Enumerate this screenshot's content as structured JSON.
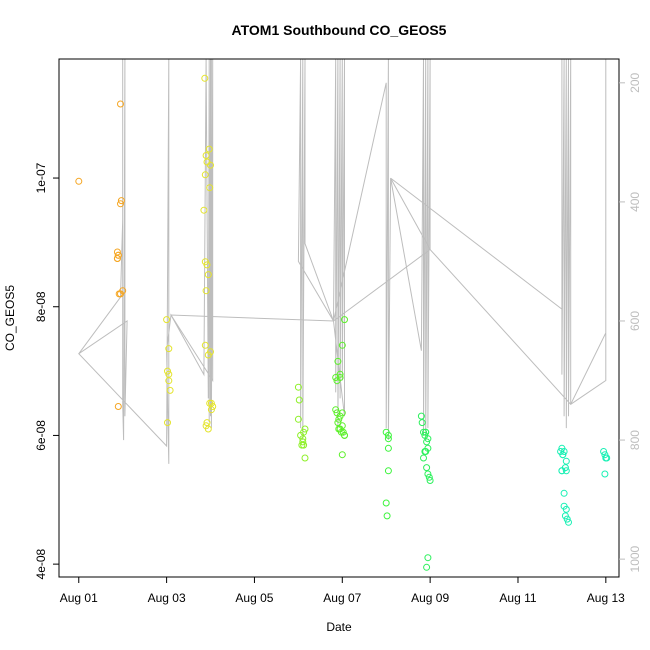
{
  "chart_data": {
    "type": "scatter",
    "title": "ATOM1 Southbound CO_GEOS5",
    "xlabel": "Date",
    "ylabel": "CO_GEOS5",
    "x_ticks": [
      "Aug 01",
      "Aug 03",
      "Aug 05",
      "Aug 07",
      "Aug 09",
      "Aug 11",
      "Aug 13"
    ],
    "x_tick_days": [
      1,
      3,
      5,
      7,
      9,
      11,
      13
    ],
    "xlim_days": [
      0.55,
      13.3
    ],
    "y_ticks": [
      "4e-08",
      "6e-08",
      "8e-08",
      "1e-07"
    ],
    "y_tick_values": [
      4e-08,
      6e-08,
      8e-08,
      1e-07
    ],
    "ylim": [
      3.8e-08,
      1.185e-07
    ],
    "y2_axis": {
      "ticks": [
        "200",
        "400",
        "600",
        "800",
        "1000"
      ],
      "tick_values": [
        200,
        400,
        600,
        800,
        1000
      ],
      "lim": [
        1030,
        160
      ],
      "color": "#bdbdbd"
    },
    "grid": false,
    "point_colors": [
      "#f5a623",
      "#f3a320",
      "#e4e42d",
      "#c8f02a",
      "#8ef028",
      "#3cf43c",
      "#1cf07c",
      "#18f0b4"
    ],
    "line_color": "#bdbdbd",
    "pressure_trace": [
      [
        1.0,
        655
      ],
      [
        1.95,
        560
      ],
      [
        2.0,
        430
      ],
      [
        2.0,
        680
      ],
      [
        2.0,
        160
      ],
      [
        2.0,
        740
      ],
      [
        2.02,
        800
      ],
      [
        2.05,
        160
      ],
      [
        2.05,
        760
      ],
      [
        2.1,
        600
      ],
      [
        1.0,
        655
      ],
      [
        3.0,
        810
      ],
      [
        3.05,
        160
      ],
      [
        3.05,
        840
      ],
      [
        3.0,
        650
      ],
      [
        3.1,
        590
      ],
      [
        3.85,
        690
      ],
      [
        3.9,
        160
      ],
      [
        3.95,
        730
      ],
      [
        3.97,
        160
      ],
      [
        3.97,
        770
      ],
      [
        4.0,
        160
      ],
      [
        4.0,
        760
      ],
      [
        4.02,
        160
      ],
      [
        4.02,
        780
      ],
      [
        4.05,
        160
      ],
      [
        4.05,
        700
      ],
      [
        3.1,
        590
      ],
      [
        6.8,
        600
      ],
      [
        6.0,
        500
      ],
      [
        6.05,
        160
      ],
      [
        6.05,
        780
      ],
      [
        6.1,
        160
      ],
      [
        6.1,
        800
      ],
      [
        6.15,
        160
      ],
      [
        6.15,
        470
      ],
      [
        6.8,
        600
      ],
      [
        6.85,
        160
      ],
      [
        6.85,
        720
      ],
      [
        6.9,
        160
      ],
      [
        6.9,
        780
      ],
      [
        6.95,
        160
      ],
      [
        6.95,
        730
      ],
      [
        7.0,
        160
      ],
      [
        7.0,
        700
      ],
      [
        7.05,
        160
      ],
      [
        7.05,
        760
      ],
      [
        6.8,
        600
      ],
      [
        8.0,
        200
      ],
      [
        8.0,
        780
      ],
      [
        8.05,
        160
      ],
      [
        8.05,
        800
      ],
      [
        8.1,
        360
      ],
      [
        8.8,
        650
      ],
      [
        8.85,
        160
      ],
      [
        8.85,
        790
      ],
      [
        8.9,
        160
      ],
      [
        8.9,
        800
      ],
      [
        8.95,
        160
      ],
      [
        8.95,
        780
      ],
      [
        9.0,
        160
      ],
      [
        9.0,
        480
      ],
      [
        8.1,
        360
      ],
      [
        12.0,
        580
      ],
      [
        12.0,
        160
      ],
      [
        12.0,
        690
      ],
      [
        12.05,
        160
      ],
      [
        12.05,
        760
      ],
      [
        12.1,
        160
      ],
      [
        12.1,
        780
      ],
      [
        12.15,
        160
      ],
      [
        12.15,
        760
      ],
      [
        12.2,
        160
      ],
      [
        12.2,
        740
      ],
      [
        13.0,
        620
      ],
      [
        13.0,
        360
      ],
      [
        13.0,
        160
      ],
      [
        13.0,
        700
      ],
      [
        12.2,
        740
      ],
      [
        9.0,
        480
      ],
      [
        6.8,
        600
      ]
    ],
    "series": [
      {
        "color": "#f5a623",
        "x": [
          1.0,
          1.88,
          1.9,
          1.88,
          1.95,
          1.97,
          1.95,
          2.0,
          1.92,
          1.9,
          1.88,
          1.9,
          1.95
        ],
        "y": [
          9.95e-08,
          8.85e-08,
          8.8e-08,
          8.75e-08,
          9.6e-08,
          9.65e-08,
          1.115e-07,
          8.25e-08,
          8.2e-08,
          6.45e-08,
          8.75e-08,
          8.8e-08,
          8.2e-08
        ]
      },
      {
        "color": "#e4e42d",
        "x": [
          3.0,
          3.05,
          3.02,
          3.05,
          3.08,
          3.02,
          3.05,
          3.87,
          3.9,
          3.92,
          3.88,
          3.85,
          3.88,
          3.92,
          3.95,
          3.9,
          3.88,
          3.95,
          4.0,
          3.98,
          4.02,
          3.92,
          3.9,
          3.95,
          3.97,
          4.0,
          4.05,
          4.02,
          3.98
        ],
        "y": [
          7.8e-08,
          7.35e-08,
          7e-08,
          6.85e-08,
          6.7e-08,
          6.2e-08,
          6.95e-08,
          1.155e-07,
          1.035e-07,
          1.025e-07,
          1.005e-07,
          9.5e-08,
          8.7e-08,
          8.65e-08,
          8.5e-08,
          8.25e-08,
          7.4e-08,
          7.25e-08,
          7.3e-08,
          6.5e-08,
          6.4e-08,
          6.2e-08,
          6.15e-08,
          6.1e-08,
          1.045e-07,
          1.02e-07,
          6.45e-08,
          6.5e-08,
          9.85e-08
        ]
      },
      {
        "color": "#8ef028",
        "x": [
          6.0,
          6.02,
          6.0,
          6.05,
          6.1,
          6.08,
          6.12,
          6.15,
          6.15,
          6.12,
          6.1
        ],
        "y": [
          6.75e-08,
          6.55e-08,
          6.25e-08,
          6e-08,
          5.95e-08,
          5.85e-08,
          5.85e-08,
          5.65e-08,
          6.1e-08,
          6.05e-08,
          5.9e-08
        ]
      },
      {
        "color": "#5cf02a",
        "x": [
          6.85,
          6.88,
          6.9,
          6.92,
          6.95,
          7.0,
          6.95,
          7.02,
          7.05,
          6.9,
          6.85,
          6.88,
          6.95,
          7.0,
          7.05,
          6.95,
          7.0,
          6.92,
          7.05,
          6.98,
          7.0
        ],
        "y": [
          6.4e-08,
          6.35e-08,
          6.2e-08,
          6.25e-08,
          6.3e-08,
          6.35e-08,
          6.1e-08,
          6.05e-08,
          6e-08,
          7.15e-08,
          6.9e-08,
          6.85e-08,
          6.9e-08,
          7.4e-08,
          7.8e-08,
          6.95e-08,
          5.7e-08,
          6.1e-08,
          6e-08,
          6.05e-08,
          6.15e-08
        ]
      },
      {
        "color": "#3cf43c",
        "x": [
          8.0,
          8.05,
          8.05,
          8.05,
          8.0,
          8.02,
          8.05
        ],
        "y": [
          6.05e-08,
          6e-08,
          5.8e-08,
          5.45e-08,
          4.95e-08,
          4.75e-08,
          5.95e-08
        ]
      },
      {
        "color": "#2cf05c",
        "x": [
          8.8,
          8.82,
          8.85,
          8.88,
          8.9,
          8.92,
          8.95,
          8.88,
          8.9,
          8.85,
          8.92,
          8.95,
          9.0,
          8.98,
          8.95,
          8.92,
          8.9,
          8.95
        ],
        "y": [
          6.3e-08,
          6.2e-08,
          6.05e-08,
          6e-08,
          6.05e-08,
          5.9e-08,
          5.8e-08,
          5.75e-08,
          5.75e-08,
          5.65e-08,
          5.5e-08,
          5.4e-08,
          5.3e-08,
          5.35e-08,
          4.1e-08,
          3.95e-08,
          6.05e-08,
          5.95e-08
        ]
      },
      {
        "color": "#18f0b4",
        "x": [
          11.97,
          12.0,
          12.02,
          12.05,
          12.0,
          12.08,
          12.1,
          12.05,
          12.1,
          12.12,
          12.08,
          12.05,
          12.0,
          12.02,
          12.15,
          12.1,
          12.95,
          13.0,
          12.98,
          13.02,
          12.98
        ],
        "y": [
          5.75e-08,
          5.8e-08,
          5.7e-08,
          5.75e-08,
          5.45e-08,
          5.5e-08,
          5.6e-08,
          5.1e-08,
          4.85e-08,
          4.7e-08,
          4.75e-08,
          4.9e-08,
          5.45e-08,
          5.7e-08,
          4.65e-08,
          5.45e-08,
          5.75e-08,
          5.65e-08,
          5.7e-08,
          5.65e-08,
          5.4e-08
        ]
      }
    ]
  }
}
